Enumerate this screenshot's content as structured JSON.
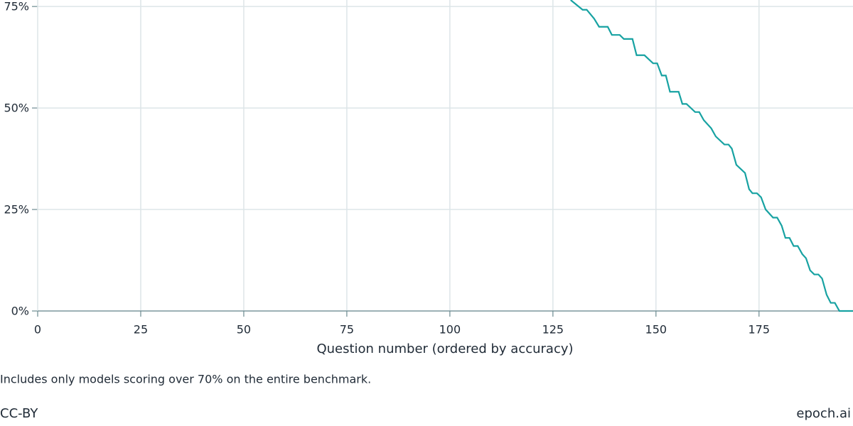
{
  "chart_data": {
    "type": "line",
    "xlabel": "Question number (ordered by accuracy)",
    "note": "Includes only models scoring over 70% on the entire benchmark.",
    "license": "CC-BY",
    "source": "epoch.ai",
    "x": [
      129.3,
      132.2,
      133.2,
      135,
      136.2,
      138.3,
      139.3,
      141.2,
      142.2,
      144.3,
      145.3,
      147.2,
      149.3,
      150.3,
      151.4,
      152.4,
      153.4,
      155.5,
      156.4,
      157.4,
      159.5,
      160.5,
      161.6,
      163.4,
      164.5,
      166.6,
      167.6,
      168.4,
      169.5,
      171.6,
      172.6,
      173.4,
      174.5,
      175.5,
      176.6,
      178.4,
      179.4,
      180.5,
      181.4,
      182.4,
      183.4,
      184.4,
      185.5,
      186.4,
      187.4,
      188.4,
      189.4,
      190.3,
      191.4,
      192.4,
      193.4,
      194.5,
      197.8
    ],
    "series": [
      {
        "color": "#17a2a2",
        "values": [
          76.6,
          74.2,
          74.2,
          72,
          70,
          70,
          68,
          68,
          67,
          67,
          63,
          63,
          61,
          61,
          58,
          58,
          54,
          54,
          51,
          51,
          49,
          49,
          47,
          45,
          43,
          41,
          41,
          40,
          36,
          34,
          30,
          29,
          29,
          28,
          25,
          23,
          23,
          21,
          18,
          18,
          16,
          16,
          14,
          13,
          10,
          9,
          9,
          8,
          4,
          2,
          2,
          0,
          0
        ]
      }
    ],
    "xlim": [
      0,
      197.8
    ],
    "xticks": [
      0,
      25,
      50,
      75,
      100,
      125,
      150,
      175
    ],
    "ylim": [
      0,
      76.6
    ],
    "yticks": [
      {
        "value": 0,
        "label": "0%"
      },
      {
        "value": 25,
        "label": "25%"
      },
      {
        "value": 50,
        "label": "50%"
      },
      {
        "value": 75,
        "label": "75%"
      }
    ],
    "grid": true
  }
}
